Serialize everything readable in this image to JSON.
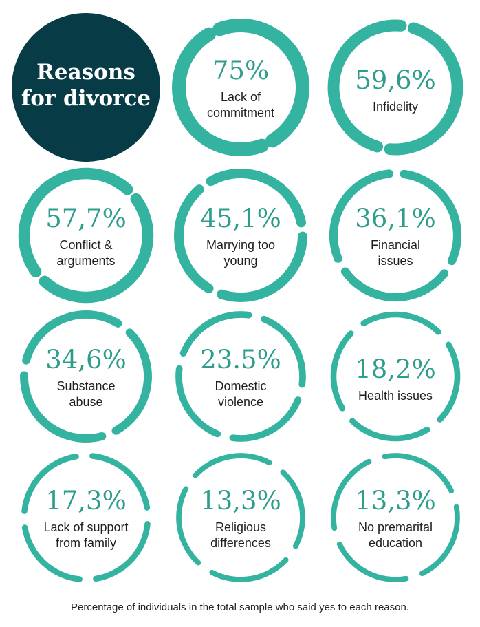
{
  "colors": {
    "accent": "#33b3a0",
    "title_bg": "#073c46",
    "title_text": "#ffffff",
    "text": "#1f1f1f",
    "percent_text": "#2e9d8c"
  },
  "title_lines": [
    "Reasons",
    "for divorce"
  ],
  "caption": "Percentage of individuals in the total sample who said yes to each reason.",
  "chart_data": {
    "type": "radial-gauge",
    "unit": "%",
    "items": [
      {
        "value": 75,
        "display": "75%",
        "label_lines": [
          "Lack of",
          "commitment"
        ]
      },
      {
        "value": 59.6,
        "display": "59,6%",
        "label_lines": [
          "Infidelity"
        ]
      },
      {
        "value": 57.7,
        "display": "57,7%",
        "label_lines": [
          "Conflict &",
          "arguments"
        ]
      },
      {
        "value": 45.1,
        "display": "45,1%",
        "label_lines": [
          "Marrying too",
          "young"
        ]
      },
      {
        "value": 36.1,
        "display": "36,1%",
        "label_lines": [
          "Financial",
          "issues"
        ]
      },
      {
        "value": 34.6,
        "display": "34,6%",
        "label_lines": [
          "Substance",
          "abuse"
        ]
      },
      {
        "value": 23.5,
        "display": "23.5%",
        "label_lines": [
          "Domestic",
          "violence"
        ]
      },
      {
        "value": 18.2,
        "display": "18,2%",
        "label_lines": [
          "Health issues"
        ]
      },
      {
        "value": 17.3,
        "display": "17,3%",
        "label_lines": [
          "Lack of support",
          "from family"
        ]
      },
      {
        "value": 13.3,
        "display": "13,3%",
        "label_lines": [
          "Religious",
          "differences"
        ]
      },
      {
        "value": 13.3,
        "display": "13,3%",
        "label_lines": [
          "No premarital",
          "education"
        ]
      }
    ]
  }
}
